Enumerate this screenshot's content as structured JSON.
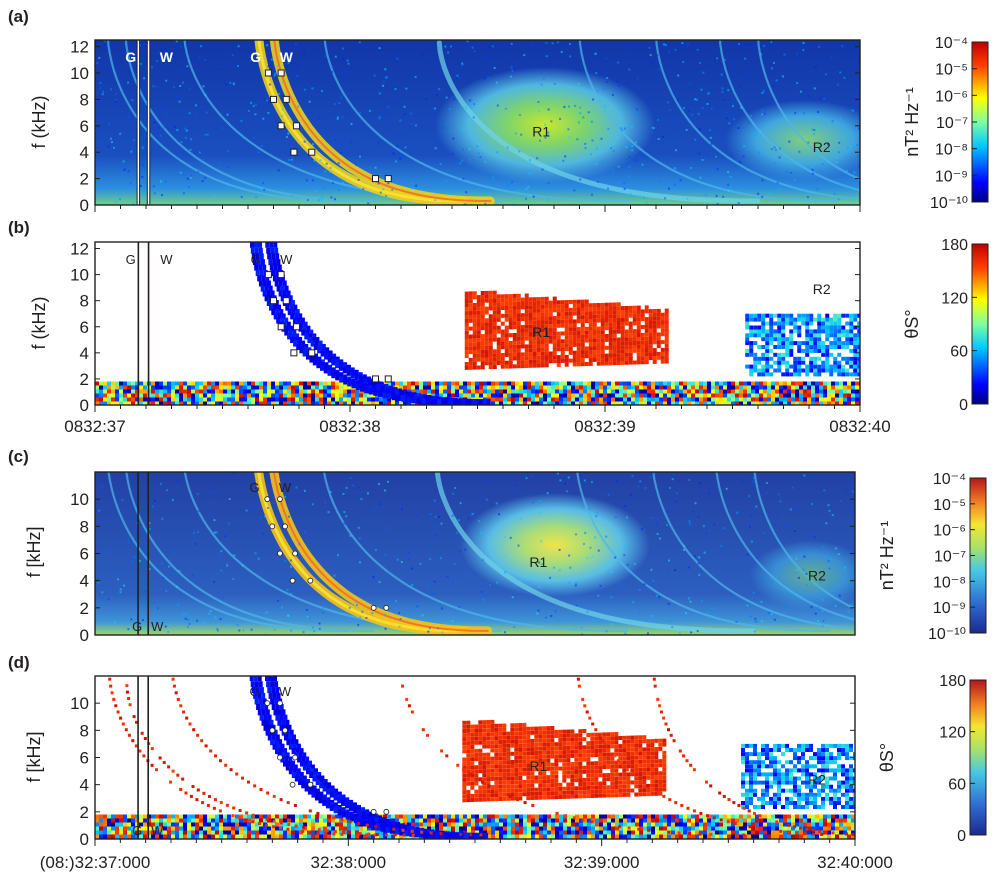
{
  "panels": [
    {
      "id": "a",
      "label": "(a)",
      "kind": "spectrogram",
      "ylabel": "f (kHz)",
      "yticks": [
        "0",
        "2",
        "4",
        "6",
        "8",
        "10",
        "12"
      ],
      "ylim": [
        0,
        12.5
      ],
      "markers": {
        "G": "G",
        "W": "W",
        "R1": "R1",
        "R2": "R2"
      },
      "colorbar": {
        "label": "nT² Hz⁻¹",
        "ticks": [
          "10⁻⁴",
          "10⁻⁵",
          "10⁻⁶",
          "10⁻⁷",
          "10⁻⁸",
          "10⁻⁹",
          "10⁻¹⁰"
        ],
        "scale": "jet"
      }
    },
    {
      "id": "b",
      "label": "(b)",
      "kind": "wna",
      "ylabel": "f (kHz)",
      "yticks": [
        "0",
        "2",
        "4",
        "6",
        "8",
        "10",
        "12"
      ],
      "ylim": [
        0,
        12.5
      ],
      "markers": {
        "G": "G",
        "W": "W",
        "R1": "R1",
        "R2": "R2"
      },
      "xticks": [
        "0832:37",
        "0832:38",
        "0832:39",
        "0832:40"
      ],
      "colorbar": {
        "label": "θS°",
        "ticks": [
          "180",
          "120",
          "60",
          "0"
        ],
        "scale": "jet"
      }
    },
    {
      "id": "c",
      "label": "(c)",
      "kind": "spectrogram",
      "ylabel": "f [kHz]",
      "yticks": [
        "0",
        "2",
        "4",
        "6",
        "8",
        "10"
      ],
      "ylim": [
        0,
        12
      ],
      "markers": {
        "G": "G",
        "W": "W",
        "R1": "R1",
        "R2": "R2"
      },
      "colorbar": {
        "label": "nT² Hz⁻¹",
        "ticks": [
          "10⁻⁴",
          "10⁻⁵",
          "10⁻⁶",
          "10⁻⁷",
          "10⁻⁸",
          "10⁻⁹",
          "10⁻¹⁰"
        ],
        "scale": "turbo"
      }
    },
    {
      "id": "d",
      "label": "(d)",
      "kind": "wna",
      "ylabel": "f [kHz]",
      "yticks": [
        "0",
        "2",
        "4",
        "6",
        "8",
        "10"
      ],
      "ylim": [
        0,
        12
      ],
      "markers": {
        "G": "G",
        "W": "W",
        "R1": "R1",
        "R2": "R2"
      },
      "xticks": [
        "(08:)32:37:000",
        "32:38:000",
        "32:39:000",
        "32:40:000"
      ],
      "colorbar": {
        "label": "θS°",
        "ticks": [
          "180",
          "120",
          "60",
          "0"
        ],
        "scale": "turbo"
      }
    }
  ],
  "chart_data": [
    {
      "type": "heatmap",
      "panel": "a",
      "x_range": [
        "0832:37",
        "0832:40"
      ],
      "ylabel": "f (kHz)",
      "ylim": [
        0,
        12.5
      ],
      "colorbar_label": "nT² Hz⁻¹",
      "colorbar_range": [
        "10⁻¹⁰",
        "10⁻⁴"
      ],
      "annotations": [
        {
          "label": "G",
          "time_s": 0.2
        },
        {
          "label": "W",
          "time_s": 0.25
        },
        {
          "label": "R1",
          "time_s": 1.75,
          "f_kHz": 5
        },
        {
          "label": "R2",
          "time_s": 2.85,
          "f_kHz": 4
        }
      ],
      "G_points": [
        [
          0.68,
          10
        ],
        [
          0.7,
          8
        ],
        [
          0.73,
          6
        ],
        [
          0.78,
          4
        ],
        [
          1.1,
          2
        ]
      ],
      "W_points": [
        [
          0.73,
          10
        ],
        [
          0.75,
          8
        ],
        [
          0.79,
          6
        ],
        [
          0.85,
          4
        ],
        [
          1.15,
          2
        ]
      ]
    },
    {
      "type": "heatmap",
      "panel": "b",
      "x_range": [
        "0832:37",
        "0832:40"
      ],
      "ylabel": "f (kHz)",
      "ylim": [
        0,
        12.5
      ],
      "colorbar_label": "θS°",
      "colorbar_range": [
        0,
        180
      ],
      "annotations": [
        {
          "label": "R1",
          "theta_deg": 160
        },
        {
          "label": "R2",
          "theta_deg": 30
        }
      ]
    },
    {
      "type": "heatmap",
      "panel": "c",
      "x_range": [
        "32:37:000",
        "32:40:000"
      ],
      "ylabel": "f [kHz]",
      "ylim": [
        0,
        12
      ],
      "colorbar_label": "nT² Hz⁻¹",
      "colorbar_range": [
        "10⁻¹⁰",
        "10⁻⁴"
      ]
    },
    {
      "type": "heatmap",
      "panel": "d",
      "x_range": [
        "32:37:000",
        "32:40:000"
      ],
      "ylabel": "f [kHz]",
      "ylim": [
        0,
        12
      ],
      "colorbar_label": "θS°",
      "colorbar_range": [
        0,
        180
      ]
    }
  ]
}
